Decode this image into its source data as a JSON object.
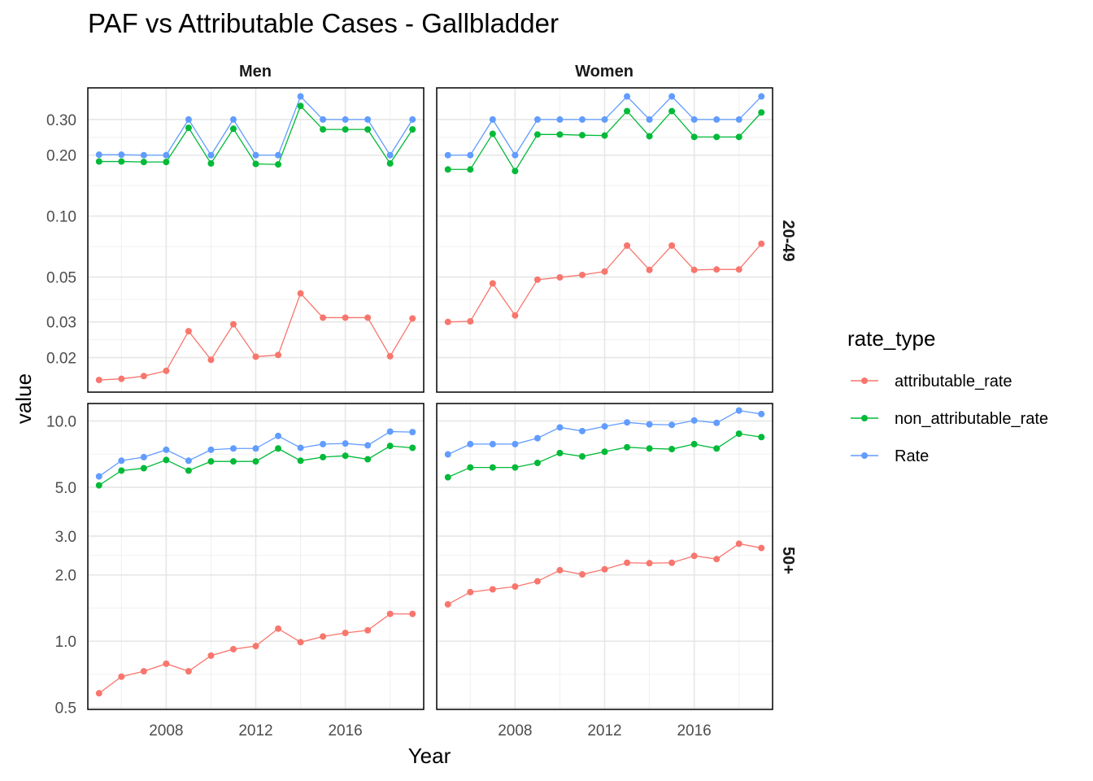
{
  "chart_data": {
    "type": "line",
    "title": "PAF vs Attributable Cases - Gallbladder",
    "xlabel": "Year",
    "ylabel": "value",
    "x_ticks": [
      2008,
      2012,
      2016
    ],
    "legend": {
      "title": "rate_type",
      "placement": "right",
      "items": [
        {
          "name": "attributable_rate",
          "color": "#F8766D"
        },
        {
          "name": "non_attributable_rate",
          "color": "#00BA38"
        },
        {
          "name": "Rate",
          "color": "#619CFF"
        }
      ]
    },
    "column_strips": [
      "Men",
      "Women"
    ],
    "row_strips": [
      "20-49",
      "50+"
    ],
    "y_scale": "log10",
    "x_range": [
      2004.5,
      2019.5
    ],
    "x": [
      2005,
      2006,
      2007,
      2008,
      2009,
      2010,
      2011,
      2012,
      2013,
      2014,
      2015,
      2016,
      2017,
      2018,
      2019
    ],
    "rows": [
      {
        "strip": "20-49",
        "y_ticks": [
          "0.02",
          "0.03",
          "0.05",
          "0.10",
          "0.20",
          "0.30"
        ],
        "y_tick_values": [
          0.02,
          0.03,
          0.05,
          0.1,
          0.2,
          0.3
        ],
        "ylim": [
          0.0135,
          0.43
        ]
      },
      {
        "strip": "50+",
        "y_ticks": [
          "0.5",
          "1.0",
          "2.0",
          "3.0",
          "5.0",
          "10.0"
        ],
        "y_tick_values": [
          0.5,
          1.0,
          2.0,
          3.0,
          5.0,
          10.0
        ],
        "ylim": [
          0.49,
          12.0
        ]
      }
    ],
    "panels": [
      {
        "column": "Men",
        "row": "20-49",
        "series": [
          {
            "name": "attributable_rate",
            "values": [
              0.0155,
              0.0157,
              0.0162,
              0.0172,
              0.027,
              0.0195,
              0.0292,
              0.0202,
              0.0206,
              0.0415,
              0.0315,
              0.0315,
              0.0315,
              0.0203,
              0.0312
            ]
          },
          {
            "name": "non_attributable_rate",
            "values": [
              0.186,
              0.186,
              0.185,
              0.185,
              0.273,
              0.182,
              0.27,
              0.181,
              0.18,
              0.35,
              0.268,
              0.268,
              0.268,
              0.182,
              0.268
            ]
          },
          {
            "name": "Rate",
            "values": [
              0.201,
              0.201,
              0.2,
              0.2,
              0.3,
              0.2,
              0.3,
              0.2,
              0.2,
              0.39,
              0.3,
              0.3,
              0.3,
              0.2,
              0.3
            ]
          }
        ]
      },
      {
        "column": "Women",
        "row": "20-49",
        "series": [
          {
            "name": "attributable_rate",
            "values": [
              0.03,
              0.0302,
              0.0465,
              0.0323,
              0.0485,
              0.0498,
              0.0512,
              0.0532,
              0.0715,
              0.0542,
              0.0715,
              0.0542,
              0.0545,
              0.0545,
              0.073
            ]
          },
          {
            "name": "non_attributable_rate",
            "values": [
              0.17,
              0.17,
              0.255,
              0.167,
              0.253,
              0.253,
              0.251,
              0.25,
              0.33,
              0.248,
              0.33,
              0.246,
              0.246,
              0.246,
              0.325
            ]
          },
          {
            "name": "Rate",
            "values": [
              0.2,
              0.2,
              0.3,
              0.2,
              0.3,
              0.3,
              0.3,
              0.3,
              0.39,
              0.3,
              0.39,
              0.3,
              0.3,
              0.3,
              0.39
            ]
          }
        ]
      },
      {
        "column": "Men",
        "row": "50+",
        "series": [
          {
            "name": "attributable_rate",
            "values": [
              0.58,
              0.69,
              0.73,
              0.79,
              0.73,
              0.86,
              0.92,
              0.95,
              1.14,
              0.99,
              1.05,
              1.09,
              1.12,
              1.33,
              1.33
            ]
          },
          {
            "name": "non_attributable_rate",
            "values": [
              5.1,
              5.95,
              6.1,
              6.65,
              5.95,
              6.55,
              6.55,
              6.55,
              7.5,
              6.6,
              6.85,
              6.95,
              6.7,
              7.7,
              7.55
            ]
          },
          {
            "name": "Rate",
            "values": [
              5.6,
              6.6,
              6.85,
              7.4,
              6.6,
              7.4,
              7.5,
              7.5,
              8.55,
              7.55,
              7.85,
              7.9,
              7.75,
              8.95,
              8.9
            ]
          }
        ]
      },
      {
        "column": "Women",
        "row": "50+",
        "series": [
          {
            "name": "attributable_rate",
            "values": [
              1.47,
              1.67,
              1.72,
              1.77,
              1.87,
              2.1,
              2.01,
              2.12,
              2.27,
              2.26,
              2.27,
              2.44,
              2.36,
              2.77,
              2.65
            ]
          },
          {
            "name": "non_attributable_rate",
            "values": [
              5.55,
              6.15,
              6.15,
              6.15,
              6.45,
              7.15,
              6.9,
              7.25,
              7.6,
              7.5,
              7.45,
              7.85,
              7.5,
              8.75,
              8.45
            ]
          },
          {
            "name": "Rate",
            "values": [
              7.05,
              7.85,
              7.85,
              7.85,
              8.35,
              9.35,
              9.0,
              9.45,
              9.85,
              9.65,
              9.6,
              10.05,
              9.8,
              11.15,
              10.75
            ]
          }
        ]
      }
    ]
  }
}
